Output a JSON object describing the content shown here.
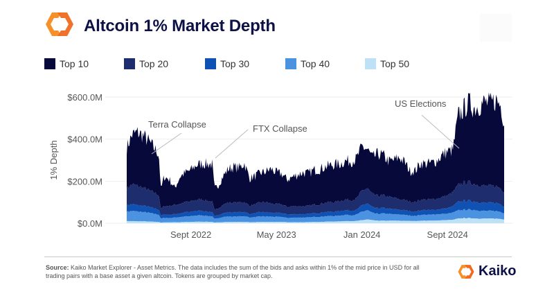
{
  "header": {
    "title": "Altcoin 1% Market Depth",
    "logo_icon": "kaiko-logo-icon"
  },
  "legend": [
    {
      "label": "Top 10",
      "color": "#06093a"
    },
    {
      "label": "Top 20",
      "color": "#1e2d6e"
    },
    {
      "label": "Top 30",
      "color": "#0f52b4"
    },
    {
      "label": "Top 40",
      "color": "#4b93e0"
    },
    {
      "label": "Top 50",
      "color": "#bfe1f7"
    }
  ],
  "chart_data": {
    "type": "area",
    "stacked": true,
    "title": "Altcoin 1% Market Depth",
    "xlabel": "",
    "ylabel": "1% Depth",
    "ylim": [
      0,
      600
    ],
    "y_unit": "$M",
    "y_ticks": [
      "$0.0M",
      "$200.0M",
      "$400.0M",
      "$600.0M"
    ],
    "y_tick_values": [
      0,
      200,
      400,
      600
    ],
    "x_ticks": [
      "Sept 2022",
      "May 2023",
      "Jan 2024",
      "Sept 2024"
    ],
    "x_tick_months": [
      6,
      14,
      22,
      30
    ],
    "x_range_months": [
      0,
      35.3
    ],
    "x_origin": "Mar 2022",
    "grid": true,
    "legend_position": "top",
    "x": [
      0,
      0.5,
      1,
      1.5,
      2,
      2.5,
      3,
      3.2,
      3.5,
      4,
      4.5,
      5,
      5.5,
      6,
      6.5,
      7,
      7.5,
      8,
      8.2,
      8.5,
      9,
      9.5,
      10,
      10.5,
      11,
      11.5,
      12,
      12.5,
      13,
      13.5,
      14,
      14.5,
      15,
      15.5,
      16,
      16.5,
      17,
      17.5,
      18,
      18.5,
      19,
      19.5,
      20,
      20.5,
      21,
      21.5,
      22,
      22.5,
      23,
      23.5,
      24,
      24.5,
      25,
      25.5,
      26,
      26.5,
      27,
      27.5,
      28,
      28.5,
      29,
      29.5,
      30,
      30.5,
      31,
      31.5,
      32,
      32.5,
      33,
      33.5,
      34,
      34.5,
      35,
      35.3
    ],
    "series": [
      {
        "name": "Top 50",
        "values": [
          10,
          10,
          9,
          9,
          8,
          7,
          6,
          3,
          4,
          4,
          5,
          5,
          6,
          6,
          7,
          7,
          7,
          6,
          3,
          4,
          5,
          6,
          6,
          6,
          6,
          5,
          5,
          6,
          6,
          6,
          6,
          6,
          5,
          5,
          5,
          5,
          5,
          6,
          6,
          7,
          8,
          8,
          9,
          10,
          10,
          11,
          14,
          18,
          14,
          12,
          12,
          12,
          12,
          12,
          11,
          11,
          10,
          12,
          12,
          12,
          13,
          14,
          15,
          16,
          22,
          24,
          24,
          23,
          22,
          22,
          22,
          22,
          20,
          18
        ]
      },
      {
        "name": "Top 40",
        "values": [
          45,
          48,
          46,
          44,
          42,
          38,
          35,
          18,
          22,
          20,
          22,
          24,
          26,
          27,
          30,
          30,
          28,
          26,
          17,
          20,
          24,
          26,
          25,
          26,
          28,
          22,
          24,
          26,
          26,
          25,
          24,
          24,
          20,
          21,
          22,
          22,
          22,
          24,
          24,
          26,
          26,
          26,
          28,
          30,
          28,
          30,
          40,
          44,
          34,
          32,
          34,
          32,
          30,
          30,
          28,
          26,
          24,
          28,
          28,
          28,
          30,
          30,
          30,
          34,
          38,
          40,
          40,
          40,
          38,
          36,
          36,
          36,
          34,
          30
        ]
      },
      {
        "name": "Top 30",
        "values": [
          30,
          32,
          30,
          30,
          28,
          26,
          24,
          14,
          16,
          16,
          16,
          18,
          20,
          20,
          22,
          22,
          20,
          20,
          12,
          14,
          18,
          20,
          20,
          20,
          20,
          16,
          18,
          20,
          20,
          18,
          18,
          18,
          16,
          16,
          16,
          16,
          16,
          18,
          18,
          20,
          20,
          20,
          22,
          22,
          22,
          22,
          30,
          32,
          26,
          26,
          26,
          24,
          24,
          22,
          22,
          20,
          20,
          22,
          22,
          22,
          22,
          24,
          26,
          30,
          40,
          42,
          42,
          40,
          40,
          38,
          38,
          38,
          36,
          32
        ]
      },
      {
        "name": "Top 20",
        "values": [
          80,
          95,
          92,
          85,
          80,
          75,
          70,
          30,
          40,
          42,
          44,
          46,
          48,
          50,
          52,
          54,
          52,
          50,
          28,
          32,
          40,
          46,
          46,
          46,
          46,
          40,
          42,
          46,
          48,
          44,
          42,
          42,
          36,
          38,
          38,
          38,
          38,
          40,
          42,
          44,
          46,
          46,
          48,
          50,
          50,
          54,
          70,
          72,
          62,
          60,
          60,
          56,
          54,
          50,
          48,
          46,
          46,
          50,
          50,
          50,
          52,
          56,
          60,
          66,
          80,
          86,
          88,
          84,
          82,
          80,
          80,
          80,
          76,
          70
        ]
      },
      {
        "name": "Top 10",
        "values": [
          195,
          235,
          255,
          250,
          235,
          215,
          195,
          95,
          140,
          125,
          80,
          130,
          140,
          150,
          165,
          170,
          175,
          178,
          105,
          105,
          135,
          160,
          170,
          165,
          185,
          130,
          135,
          140,
          145,
          165,
          150,
          145,
          130,
          140,
          150,
          160,
          155,
          165,
          165,
          170,
          175,
          180,
          175,
          185,
          185,
          190,
          210,
          185,
          175,
          200,
          190,
          170,
          180,
          200,
          180,
          145,
          150,
          175,
          170,
          175,
          180,
          200,
          210,
          200,
          330,
          350,
          380,
          360,
          380,
          400,
          390,
          410,
          395,
          330
        ]
      }
    ],
    "annotations": [
      {
        "text": "Terra Collapse",
        "month": 3.2
      },
      {
        "text": "FTX Collapse",
        "month": 8.2
      },
      {
        "text": "US Elections",
        "month": 31.5
      }
    ]
  },
  "footer": {
    "source_label": "Source:",
    "source_text": " Kaiko Market Explorer - Asset Metrics. The data includes the sum of the bids and asks within 1% of the mid price in USD for all trading pairs with a base asset  a given altcoin. Tokens are grouped by market cap.",
    "brand": "Kaiko"
  }
}
